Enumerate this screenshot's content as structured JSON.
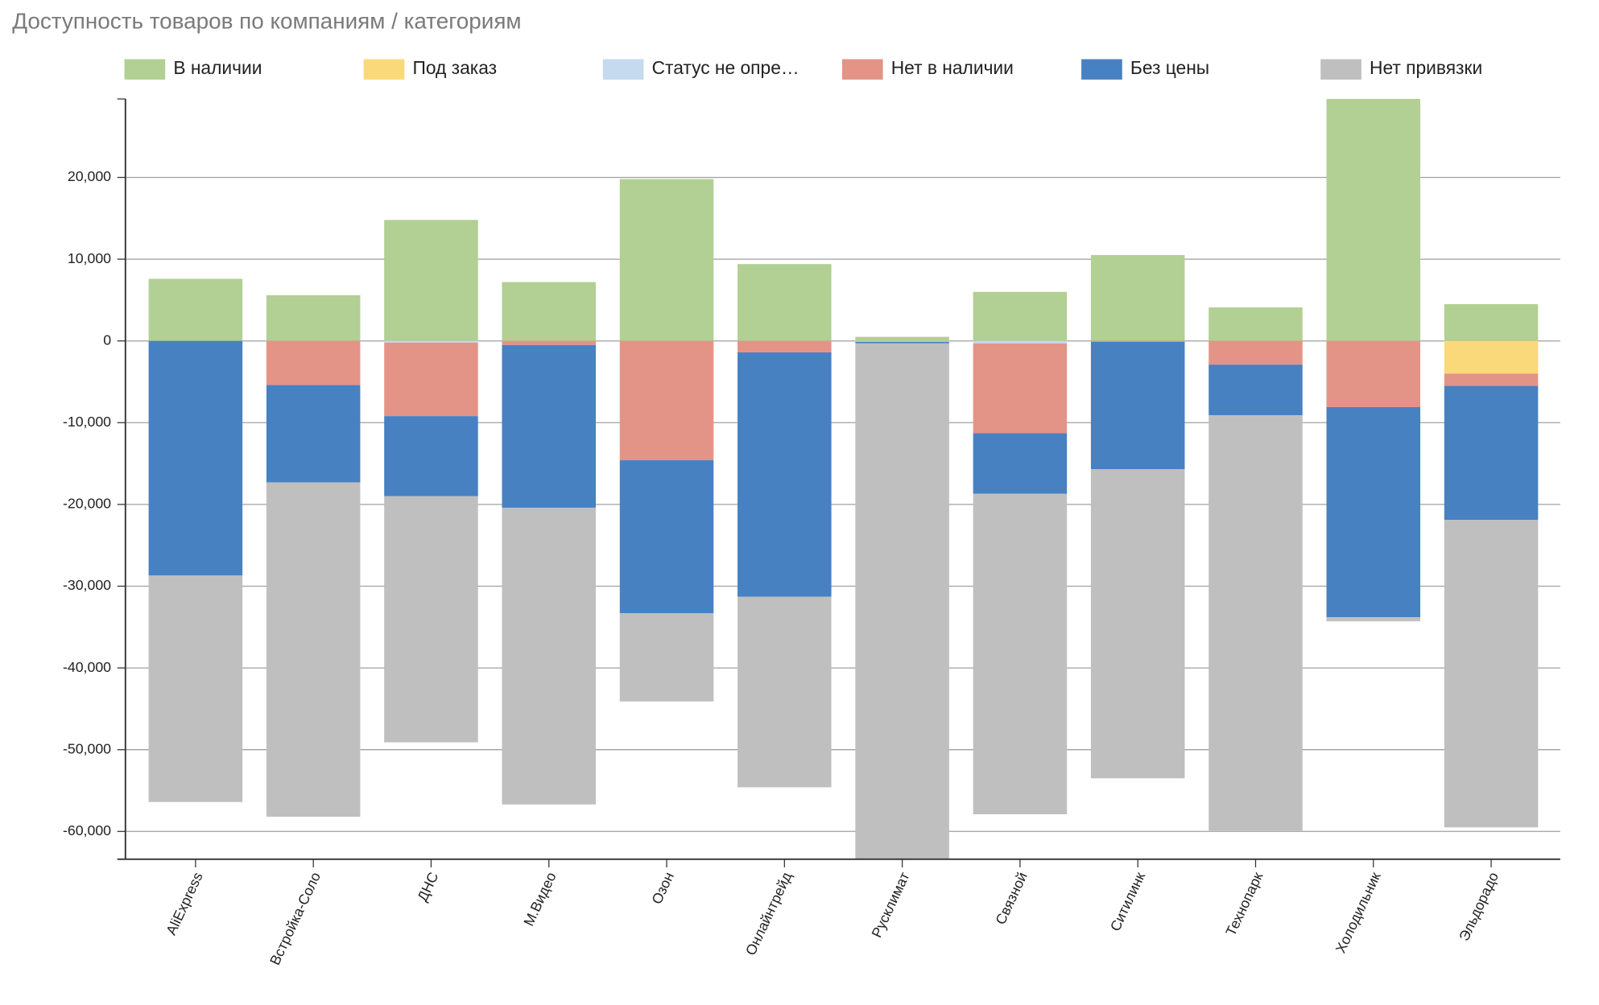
{
  "chart_data": {
    "type": "stacked_bar",
    "title": "Доступность товаров по компаниям / категориям",
    "categories": [
      "AliExpress",
      "Встройка-Соло",
      "ДНС",
      "М.Видео",
      "Озон",
      "Онлайнтрейд",
      "Русклимат",
      "Связной",
      "Ситилинк",
      "Технопарк",
      "Холодильник",
      "Эльдорадо"
    ],
    "series": [
      {
        "name": "В наличии",
        "color": "#b2cf94",
        "values": [
          7600,
          5600,
          14800,
          7200,
          19800,
          9400,
          500,
          6000,
          10500,
          4100,
          29600,
          4500
        ]
      },
      {
        "name": "Под заказ",
        "color": "#fad97a",
        "values": [
          0,
          0,
          0,
          0,
          0,
          0,
          0,
          0,
          0,
          0,
          0,
          -4000
        ]
      },
      {
        "name": "Статус не опре…",
        "color": "#c5d9ef",
        "values": [
          0,
          0,
          -200,
          0,
          0,
          0,
          -100,
          -300,
          0,
          0,
          0,
          0
        ]
      },
      {
        "name": "Нет в наличии",
        "color": "#e49387",
        "values": [
          0,
          -5400,
          -9000,
          -500,
          -14600,
          -1400,
          0,
          -11000,
          -100,
          -2900,
          -8100,
          -1500
        ]
      },
      {
        "name": "Без цены",
        "color": "#4781c2",
        "values": [
          -28700,
          -11900,
          -9800,
          -19900,
          -18700,
          -29900,
          -200,
          -7400,
          -15600,
          -6200,
          -25700,
          -16400
        ]
      },
      {
        "name": "Нет привязки",
        "color": "#bfbfbf",
        "values": [
          -27700,
          -40900,
          -30100,
          -36300,
          -10800,
          -23300,
          -63100,
          -39200,
          -37800,
          -50800,
          -500,
          -37600
        ]
      }
    ],
    "ylim": [
      -63400,
      29600
    ],
    "yticks": [
      {
        "value": -60000,
        "label": "-60,000"
      },
      {
        "value": -50000,
        "label": "-50,000"
      },
      {
        "value": -40000,
        "label": "-40,000"
      },
      {
        "value": -30000,
        "label": "-30,000"
      },
      {
        "value": -20000,
        "label": "-20,000"
      },
      {
        "value": -10000,
        "label": "-10,000"
      },
      0,
      {
        "value": 10000,
        "label": "10,000"
      },
      {
        "value": 20000,
        "label": "20,000"
      }
    ],
    "grid": true,
    "legend": "top"
  }
}
